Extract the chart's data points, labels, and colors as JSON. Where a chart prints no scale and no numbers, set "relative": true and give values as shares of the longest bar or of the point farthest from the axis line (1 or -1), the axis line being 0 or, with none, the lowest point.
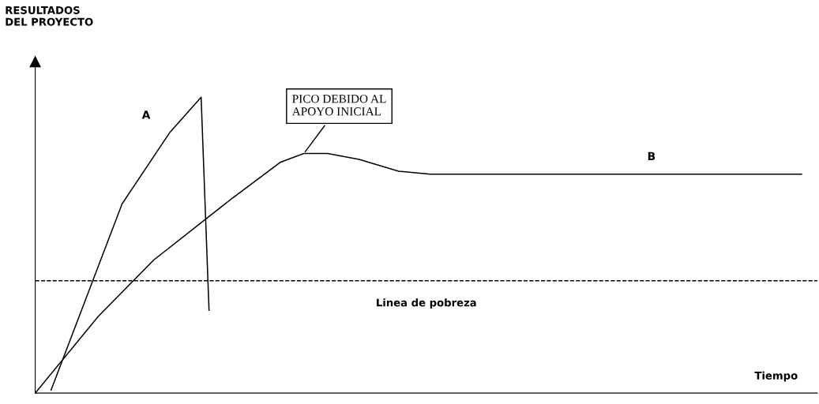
{
  "chart_data": {
    "type": "line",
    "relative": true,
    "xlabel": "Tiempo",
    "categories": [
      null,
      null,
      null,
      null,
      null,
      null,
      null,
      null,
      null,
      null,
      null,
      null,
      null,
      null,
      null,
      null,
      null,
      null,
      null,
      null,
      null,
      null,
      null,
      null,
      null,
      null,
      null,
      null,
      null,
      null,
      null,
      null,
      null,
      null,
      null,
      null,
      null,
      null,
      null,
      null,
      null,
      null,
      null,
      null,
      null,
      null,
      null,
      null,
      null,
      null,
      null,
      null,
      null,
      null,
      null,
      null,
      null,
      null,
      null,
      null,
      null,
      null,
      null,
      null,
      null,
      null,
      null,
      null,
      null,
      null,
      null,
      null,
      null,
      null,
      null,
      null,
      null,
      null,
      null,
      null,
      null,
      null,
      null,
      null,
      null,
      null,
      null,
      null,
      null,
      null,
      null,
      null,
      null,
      null,
      null,
      null,
      null,
      null,
      null,
      null
    ],
    "tick_labels": false,
    "legend": false,
    "marker": "none",
    "line_style": "solid",
    "series": [
      {
        "name": "A",
        "color": "#000000",
        "values": [
          null,
          null,
          0.01,
          null,
          null,
          null,
          null,
          null,
          null,
          null,
          null,
          0.64,
          null,
          null,
          null,
          null,
          null,
          0.88,
          null,
          null,
          null,
          1.0,
          0.28,
          null,
          null,
          null,
          null,
          null,
          null,
          null,
          null,
          null,
          null,
          null,
          null,
          null,
          null,
          null,
          null,
          null,
          null,
          null,
          null,
          null,
          null,
          null,
          null,
          null,
          null,
          null,
          null,
          null,
          null,
          null,
          null,
          null,
          null,
          null,
          null,
          null,
          null,
          null,
          null,
          null,
          null,
          null,
          null,
          null,
          null,
          null,
          null,
          null,
          null,
          null,
          null,
          null,
          null,
          null,
          null,
          null,
          null,
          null,
          null,
          null,
          null,
          null,
          null,
          null,
          null,
          null,
          null,
          null,
          null,
          null,
          null,
          null,
          null,
          null,
          null,
          null
        ]
      },
      {
        "name": "B",
        "color": "#000000",
        "values": [
          0,
          null,
          null,
          null,
          null,
          null,
          null,
          null,
          0.26,
          null,
          null,
          null,
          null,
          null,
          null,
          0.45,
          null,
          null,
          null,
          null,
          null,
          null,
          null,
          null,
          null,
          0.66,
          null,
          null,
          null,
          null,
          null,
          0.78,
          null,
          null,
          0.81,
          null,
          null,
          0.81,
          null,
          null,
          null,
          0.79,
          null,
          null,
          null,
          null,
          0.75,
          null,
          null,
          null,
          0.74,
          null,
          null,
          null,
          null,
          null,
          null,
          null,
          null,
          null,
          null,
          null,
          null,
          null,
          null,
          null,
          null,
          null,
          null,
          null,
          null,
          null,
          null,
          null,
          null,
          null,
          null,
          null,
          null,
          null,
          null,
          null,
          null,
          null,
          null,
          null,
          null,
          null,
          null,
          null,
          null,
          null,
          null,
          null,
          null,
          null,
          null,
          0.74,
          null,
          null
        ]
      }
    ],
    "ref_lines": [
      {
        "axis": "y",
        "value": 0.38,
        "label": "Linea de pobreza",
        "color": "#000000",
        "line_style": "dashed"
      }
    ],
    "annotations": [
      "RESULTADOS\nDEL PROYECTO",
      "PICO DEBIDO AL\nAPOYO INICIAL"
    ]
  }
}
